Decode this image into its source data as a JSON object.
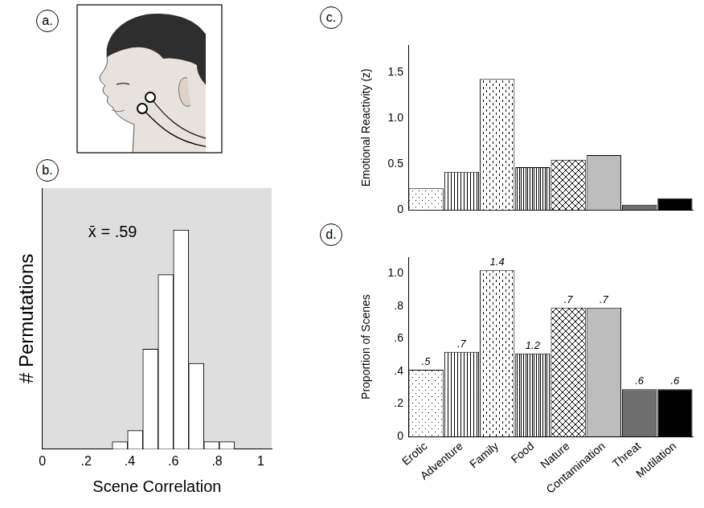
{
  "illustration": {
    "panel": "a."
  },
  "chart_data": [
    {
      "panel": "b.",
      "type": "histogram",
      "x_label": "Scene Correlation",
      "y_label": "# Permutations",
      "bins": [
        0.32,
        0.39,
        0.46,
        0.53,
        0.6,
        0.67,
        0.74,
        0.81,
        0.88
      ],
      "values": [
        10,
        25,
        134,
        234,
        294,
        115,
        10,
        10
      ],
      "color": "#ffffff",
      "xlim": [
        0,
        1.05
      ],
      "xticks": [
        0,
        {
          "value": 0.2,
          "label": ".2"
        },
        {
          "value": 0.4,
          "label": ".4"
        },
        {
          "value": 0.6,
          "label": ".6"
        },
        {
          "value": 0.8,
          "label": ".8"
        },
        1
      ],
      "ylim": [
        0,
        350
      ],
      "yticks": [],
      "tick_labels": "x",
      "grid": false,
      "annotations": [
        "x̄ = .59"
      ]
    },
    {
      "panel": "c.",
      "type": "bar",
      "y_label": "Emotional Reactivity (z)",
      "categories": [
        "Erotic",
        "Adventure",
        "Family",
        "Food",
        "Nature",
        "Contamination",
        "Threat",
        "Mutilation"
      ],
      "values": [
        0.24,
        0.42,
        1.43,
        0.47,
        0.55,
        0.6,
        0.06,
        0.13
      ],
      "colors": [
        "#ffffff",
        "#ffffff",
        "#ffffff",
        "#ffffff",
        "#ffffff",
        "#bdbdbd",
        "#6e6e6e",
        "#000000"
      ],
      "ylim": [
        0,
        1.8
      ],
      "yticks": [
        0,
        0.5,
        {
          "value": 1,
          "label": "1.0"
        },
        1.5
      ],
      "tick_labels": "y",
      "grid": false
    },
    {
      "panel": "d.",
      "type": "bar",
      "y_label": "Proportion of Scenes",
      "categories": [
        "Erotic",
        "Adventure",
        "Family",
        "Food",
        "Nature",
        "Contamination",
        "Threat",
        "Mutilation"
      ],
      "values": [
        0.41,
        0.52,
        1.02,
        0.51,
        0.79,
        0.79,
        0.29,
        0.29
      ],
      "colors": [
        "#ffffff",
        "#ffffff",
        "#ffffff",
        "#ffffff",
        "#ffffff",
        "#bdbdbd",
        "#6e6e6e",
        "#000000"
      ],
      "annotations": [
        ".5",
        ".7",
        "1.4",
        "1.2",
        ".7",
        ".7",
        ".6",
        ".6"
      ],
      "ylim": [
        0,
        1.1
      ],
      "yticks": [
        0,
        {
          "value": 0.2,
          "label": ".2"
        },
        {
          "value": 0.4,
          "label": ".4"
        },
        {
          "value": 0.6,
          "label": ".6"
        },
        {
          "value": 0.8,
          "label": ".8"
        },
        {
          "value": 1,
          "label": "1.0"
        }
      ],
      "grid": false
    }
  ]
}
